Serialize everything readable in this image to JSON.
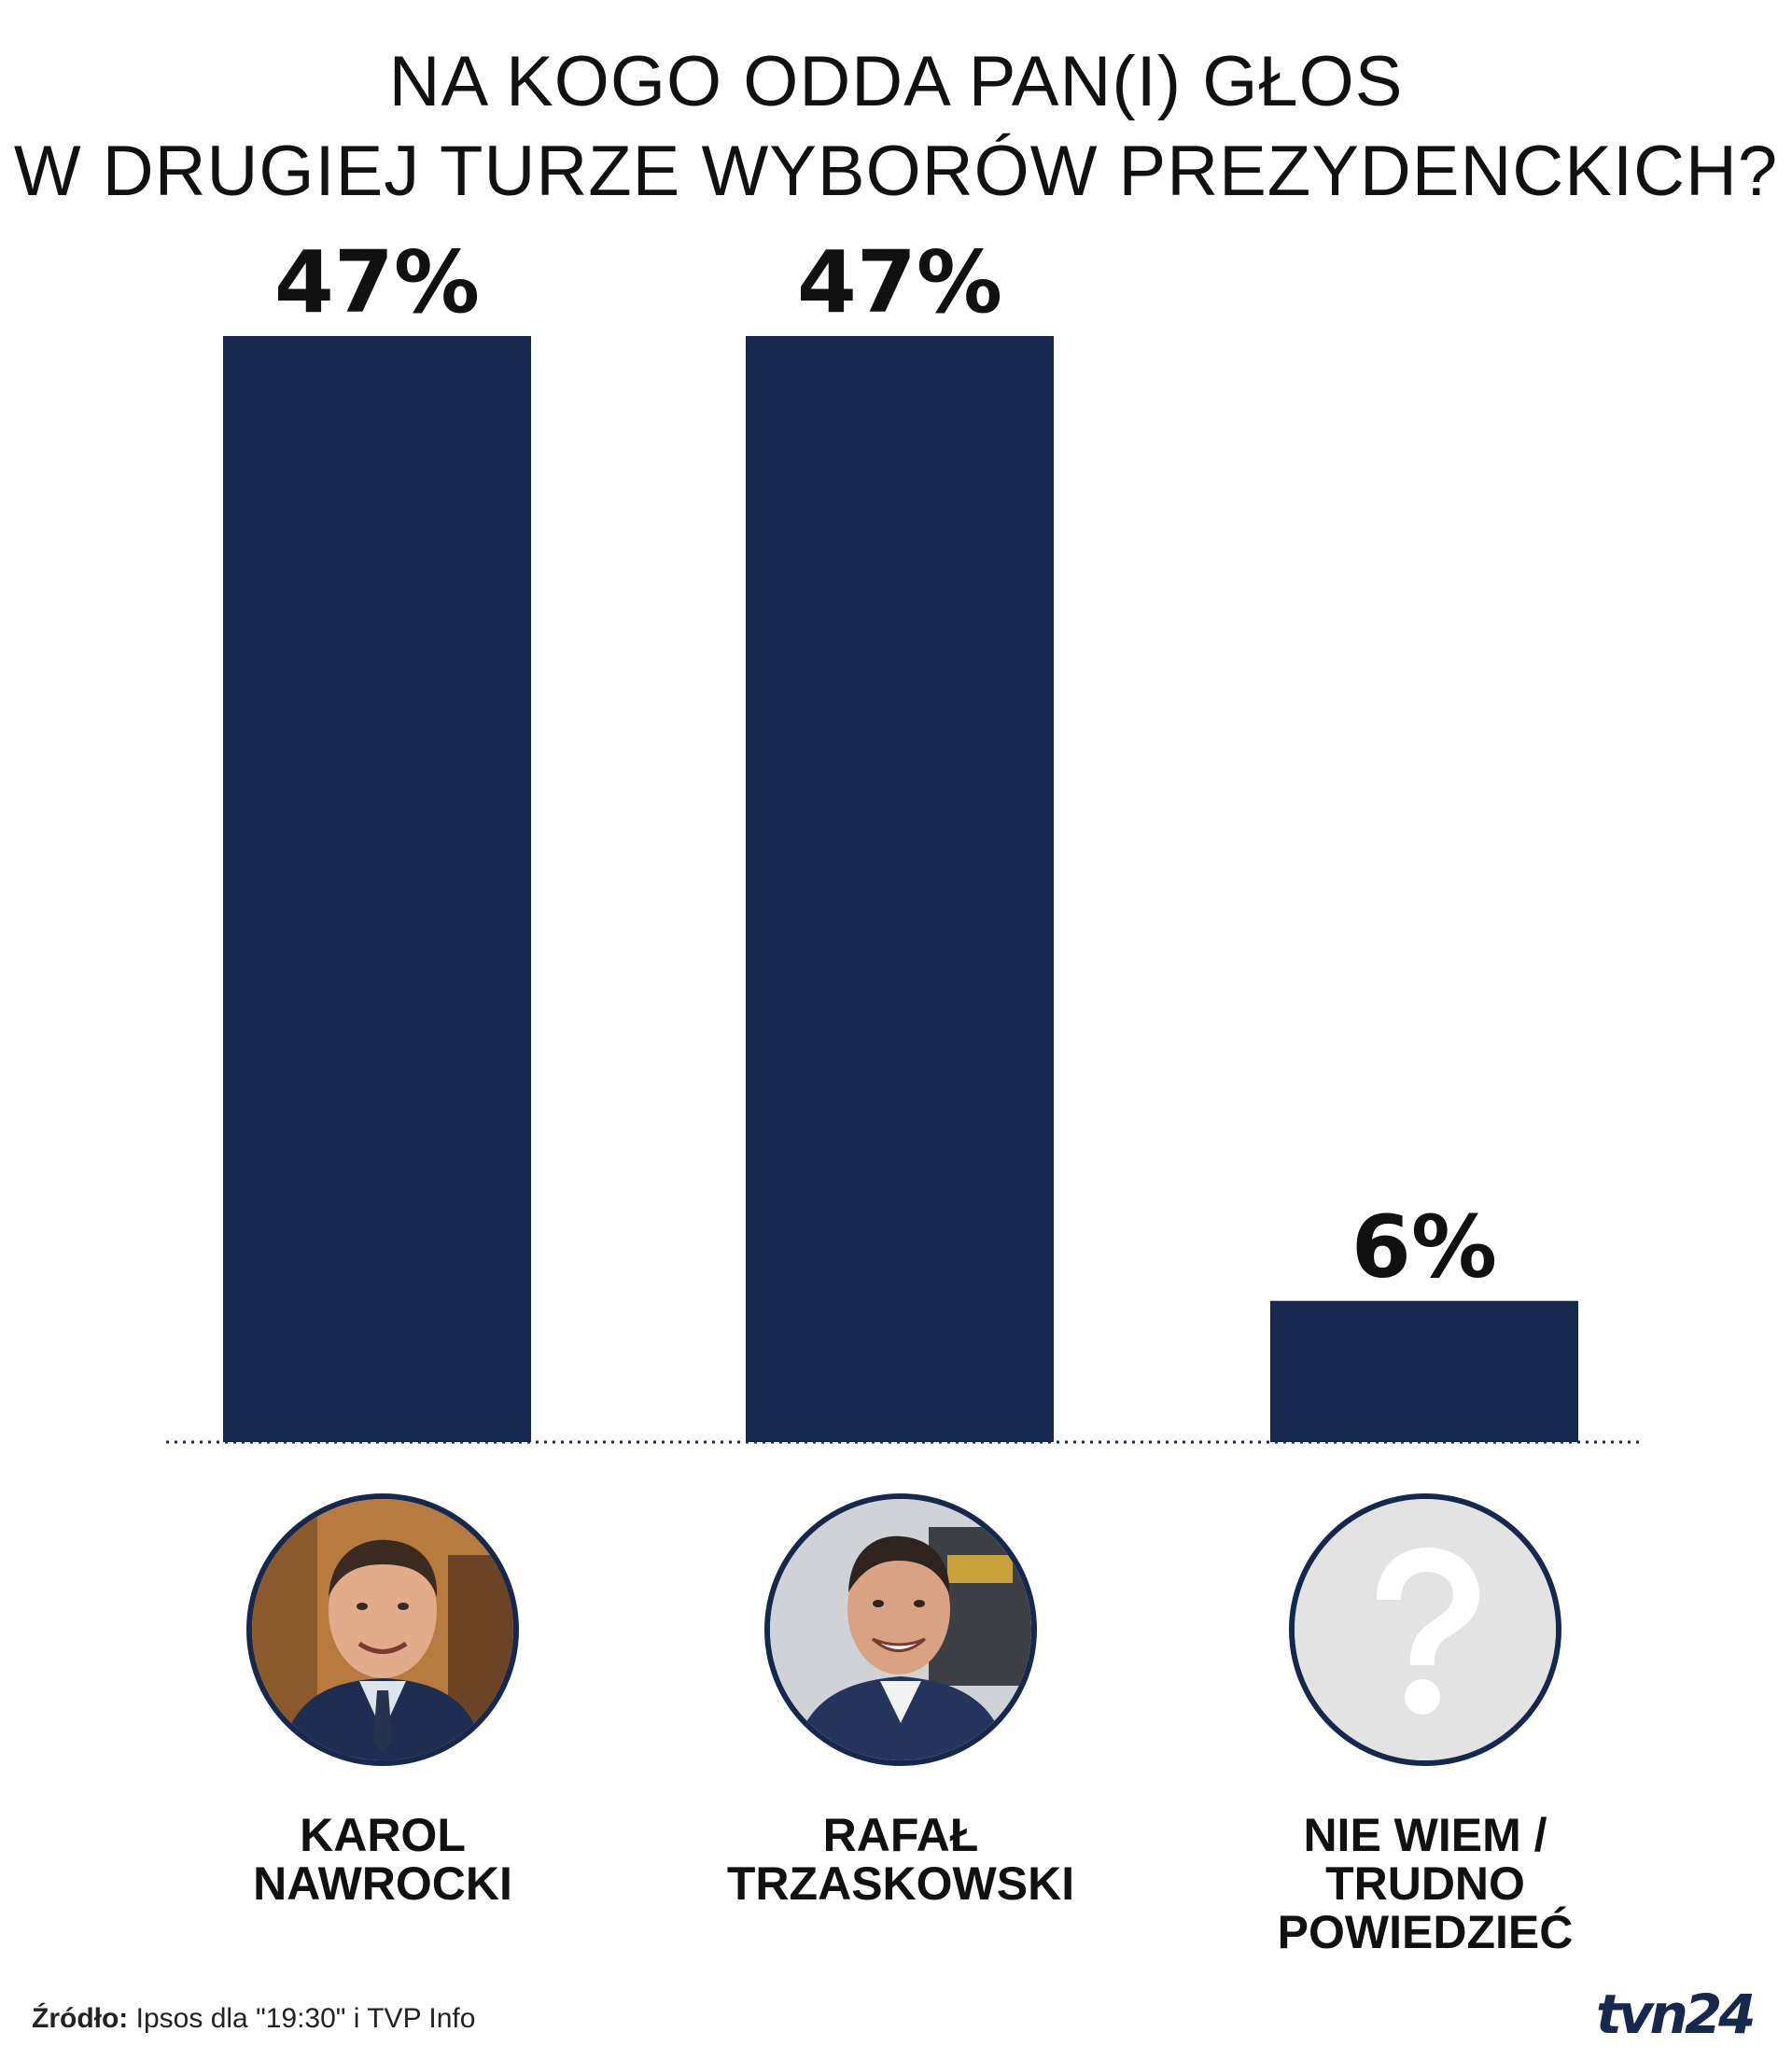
{
  "title": {
    "line1": "NA KOGO ODDA PAN(I) GŁOS",
    "line2": "W DRUGIEJ TURZE WYBORÓW PREZYDENCKICH?"
  },
  "chart_data": {
    "type": "bar",
    "categories": [
      "KAROL NAWROCKI",
      "RAFAŁ TRZASKOWSKI",
      "NIE WIEM / TRUDNO POWIEDZIEĆ"
    ],
    "values": [
      47,
      47,
      6
    ],
    "value_labels": [
      "47%",
      "47%",
      "6%"
    ],
    "unit": "%",
    "ylim": [
      0,
      47
    ],
    "grid": false,
    "legend": "none",
    "bar_color": "#17284f"
  },
  "candidates": [
    {
      "line1": "KAROL",
      "line2": "NAWROCKI",
      "line3": "",
      "avatar": "portrait-photo"
    },
    {
      "line1": "RAFAŁ",
      "line2": "TRZASKOWSKI",
      "line3": "",
      "avatar": "portrait-photo"
    },
    {
      "line1": "NIE WIEM /",
      "line2": "TRUDNO",
      "line3": "POWIEDZIEĆ",
      "avatar": "question-mark-icon"
    }
  ],
  "source": {
    "label": "Źródło:",
    "text": "Ipsos dla \"19:30\" i TVP Info"
  },
  "logo": "tvn24",
  "colors": {
    "bar": "#17284f",
    "text": "#111111",
    "background": "#ffffff"
  }
}
